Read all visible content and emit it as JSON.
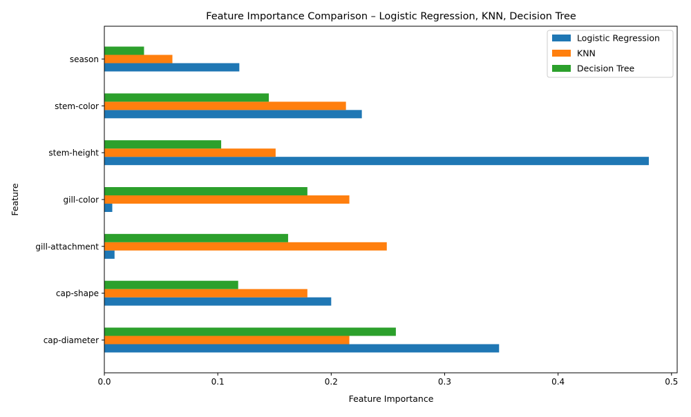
{
  "chart_data": {
    "type": "bar",
    "orientation": "horizontal",
    "title": "Feature Importance Comparison – Logistic Regression, KNN, Decision Tree",
    "xlabel": "Feature Importance",
    "ylabel": "Feature",
    "xlim": [
      0,
      0.505
    ],
    "xticks": [
      0.0,
      0.1,
      0.2,
      0.3,
      0.4,
      0.5
    ],
    "xtick_labels": [
      "0.0",
      "0.1",
      "0.2",
      "0.3",
      "0.4",
      "0.5"
    ],
    "categories": [
      "cap-diameter",
      "cap-shape",
      "gill-attachment",
      "gill-color",
      "stem-height",
      "stem-color",
      "season"
    ],
    "series": [
      {
        "name": "Logistic Regression",
        "color": "#1f77b4",
        "values": [
          0.348,
          0.2,
          0.009,
          0.007,
          0.48,
          0.227,
          0.119
        ]
      },
      {
        "name": "KNN",
        "color": "#ff7f0e",
        "values": [
          0.216,
          0.179,
          0.249,
          0.216,
          0.151,
          0.213,
          0.06
        ]
      },
      {
        "name": "Decision Tree",
        "color": "#2ca02c",
        "values": [
          0.257,
          0.118,
          0.162,
          0.179,
          0.103,
          0.145,
          0.035
        ]
      }
    ],
    "grid": false,
    "legend_position": "top-right"
  }
}
